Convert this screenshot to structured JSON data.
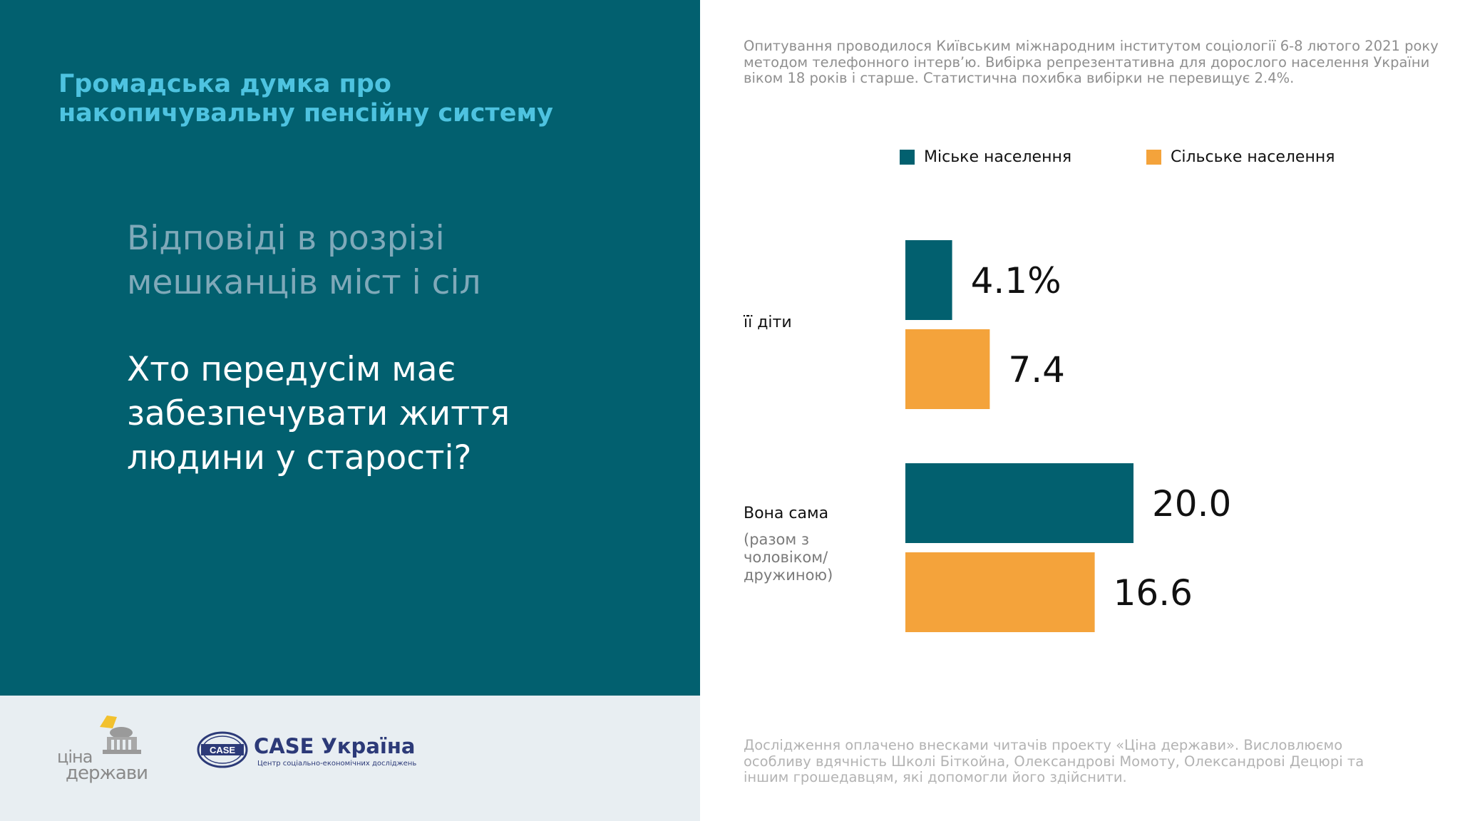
{
  "header": {
    "title": "Громадська думка про накопичувальну пенсійну систему",
    "subtitle": "Відповіді в розрізі мешканців міст і сіл",
    "question": "Хто передусім має забезпечувати життя людини у старості?"
  },
  "survey_note": "Опитування проводилося Київським міжнародним інститутом соціології 6-8 лютого 2021 року методом телефонного інтерв’ю. Вибірка репрезентативна для дорослого населення України віком 18 років і старше. Статистична похибка вибірки не перевищує 2.4%.",
  "chart_data": {
    "type": "bar",
    "orientation": "horizontal",
    "categories": [
      "її діти",
      "Вона сама"
    ],
    "category_sublabels": [
      "",
      "(разом з чоловіком/ дружиною)"
    ],
    "series": [
      {
        "name": "Міське населення",
        "color": "#02606f",
        "values": [
          4.1,
          20.0
        ],
        "labels": [
          "4.1%",
          "20.0"
        ]
      },
      {
        "name": "Сільське населення",
        "color": "#f4a33b",
        "values": [
          7.4,
          16.6
        ],
        "labels": [
          "7.4",
          "16.6"
        ]
      }
    ],
    "legend_position": "top",
    "grid": false
  },
  "footer": {
    "note": "Дослідження оплачено внесками читачів проекту «Ціна держави». Висловлюємо особливу вдячність Школі Біткойна, Олександрові Момоту, Олександрові Децюрі та іншим грошедавцям, які допомогли його здійснити.",
    "logo_cina_line1": "ціна",
    "logo_cina_line2": "держави",
    "logo_case_name": "CASE Україна",
    "logo_case_tagline": "Центр соціально-економічних досліджень",
    "logo_case_badge": "CASE"
  }
}
